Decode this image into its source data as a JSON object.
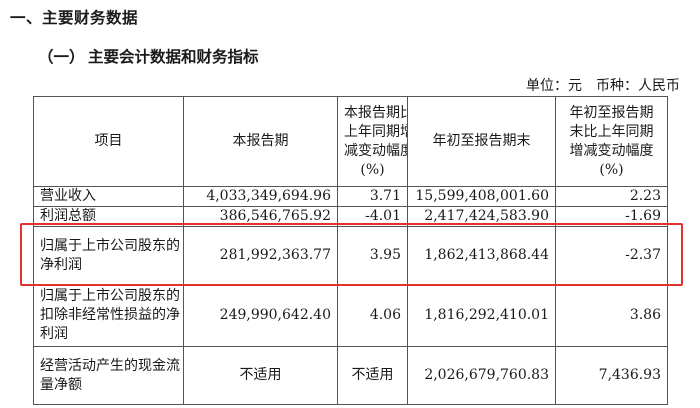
{
  "heading": "一、主要财务数据",
  "subheading_num": "（一）",
  "subheading_text": "主要会计数据和财务指标",
  "unit_label": "单位：元",
  "currency_label": "币种：人民币",
  "table": {
    "headers": [
      [
        "项目"
      ],
      [
        "本报告期"
      ],
      [
        "本报告期比",
        "上年同期增",
        "减变动幅度",
        "(%)"
      ],
      [
        "年初至报告期末"
      ],
      [
        "年初至报告期",
        "末比上年同期",
        "增减变动幅度",
        "(%)"
      ]
    ],
    "rows": [
      {
        "item": [
          "营业收入"
        ],
        "current": "4,033,349,694.96",
        "change": "3.71",
        "ytd": "15,599,408,001.60",
        "ytd_change": "2.23"
      },
      {
        "item": [
          "利润总额"
        ],
        "current": "386,546,765.92",
        "change": "-4.01",
        "ytd": "2,417,424,583.90",
        "ytd_change": "-1.69"
      },
      {
        "item": [
          "归属于上市公司股东的",
          "净利润"
        ],
        "current": "281,992,363.77",
        "change": "3.95",
        "ytd": "1,862,413,868.44",
        "ytd_change": "-2.37"
      },
      {
        "item": [
          "归属于上市公司股东的",
          "扣除非经常性损益的净",
          "利润"
        ],
        "current": "249,990,642.40",
        "change": "4.06",
        "ytd": "1,816,292,410.01",
        "ytd_change": "3.86"
      },
      {
        "item": [
          "经营活动产生的现金流",
          "量净额"
        ],
        "current": "不适用",
        "change": "不适用",
        "ytd": "2,026,679,760.83",
        "ytd_change": "7,436.93"
      }
    ]
  },
  "highlight_color": "#e3312f"
}
